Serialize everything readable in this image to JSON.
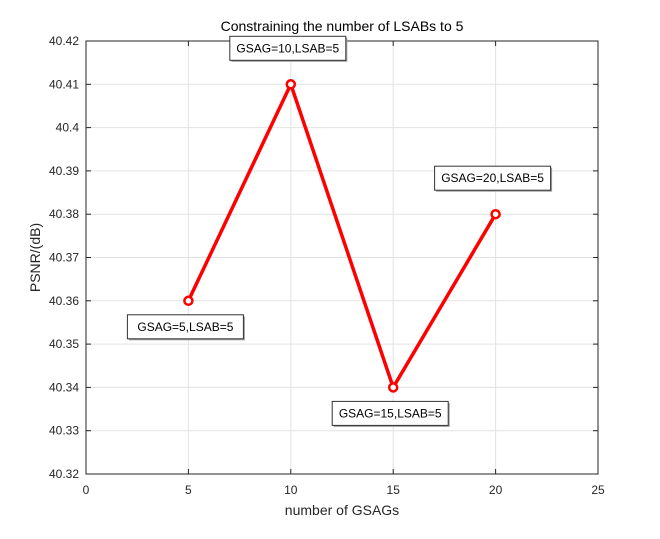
{
  "chart_data": {
    "type": "line",
    "title": "Constraining the number of LSABs to 5",
    "xlabel": "number of GSAGs",
    "ylabel": "PSNR/(dB)",
    "xlim": [
      0,
      25
    ],
    "ylim": [
      40.32,
      40.42
    ],
    "xticks": [
      0,
      5,
      10,
      15,
      20,
      25
    ],
    "yticks": [
      40.32,
      40.33,
      40.34,
      40.35,
      40.36,
      40.37,
      40.38,
      40.39,
      40.4,
      40.41,
      40.42
    ],
    "xtick_labels": [
      "0",
      "5",
      "10",
      "15",
      "20",
      "25"
    ],
    "ytick_labels": [
      "40.32",
      "40.33",
      "40.34",
      "40.35",
      "40.36",
      "40.37",
      "40.38",
      "40.39",
      "40.4",
      "40.41",
      "40.42"
    ],
    "grid": true,
    "series": [
      {
        "x": [
          5,
          10,
          15,
          20
        ],
        "y": [
          40.36,
          40.41,
          40.34,
          40.38
        ],
        "color": "#ff0000",
        "marker": "circle"
      }
    ],
    "annotations": [
      {
        "text": "GSAG=5,LSAB=5",
        "x": 5,
        "y": 40.36,
        "position": "below"
      },
      {
        "text": "GSAG=10,LSAB=5",
        "x": 10,
        "y": 40.41,
        "position": "above"
      },
      {
        "text": "GSAG=15,LSAB=5",
        "x": 15,
        "y": 40.34,
        "position": "below"
      },
      {
        "text": "GSAG=20,LSAB=5",
        "x": 20,
        "y": 40.38,
        "position": "above"
      }
    ]
  }
}
